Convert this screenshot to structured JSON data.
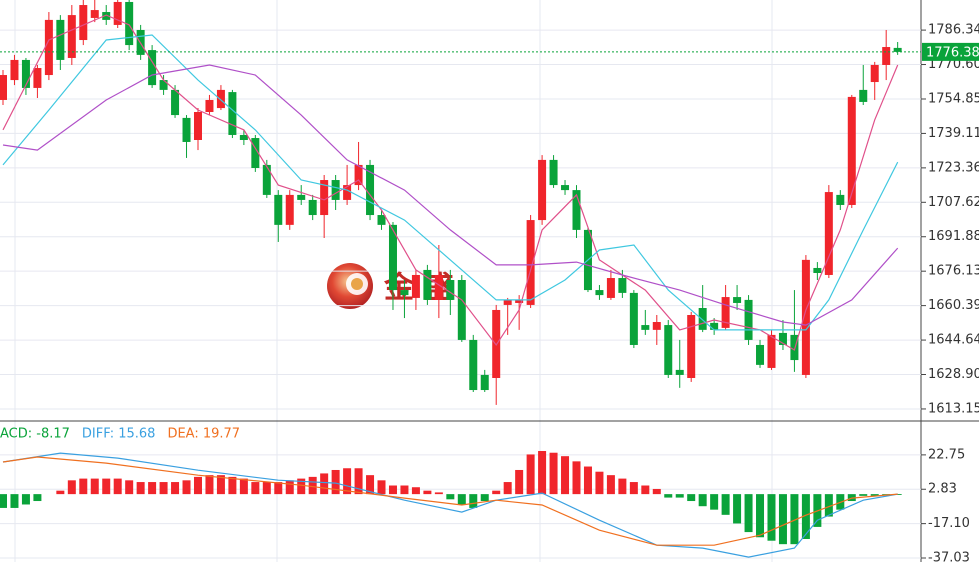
{
  "chart_data": [
    {
      "type": "candlestick",
      "ylim": [
        1608.1,
        1800.1
      ],
      "yticks": [
        1786.34,
        {
          "value": 1770.6,
          "label": "1770.60"
        },
        1754.85,
        1739.11,
        1723.36,
        1707.62,
        1691.88,
        1676.13,
        1660.39,
        1644.64,
        {
          "value": 1628.9,
          "label": "1628.90"
        },
        1613.15
      ],
      "grid": true,
      "up_color": "#f0252b",
      "down_color": "#0aa33a",
      "open": [
        1754.4,
        1763.5,
        1772.7,
        1759.9,
        1765.8,
        1791.0,
        1773.6,
        1781.8,
        1791.9,
        1794.6,
        1788.7,
        1799.2,
        1786.4,
        1777.2,
        1763.5,
        1759.0,
        1746.2,
        1736.1,
        1748.9,
        1750.7,
        1758.0,
        1738.4,
        1737.0,
        1724.7,
        1711.0,
        1697.3,
        1711.0,
        1708.7,
        1701.8,
        1717.8,
        1708.7,
        1715.5,
        1724.7,
        1701.8,
        1697.3,
        1667.5,
        1663.9,
        1676.7,
        1663.0,
        1672.1,
        1672.1,
        1644.7,
        1628.7,
        1627.3,
        1660.7,
        1661.6,
        1660.7,
        1699.5,
        1727.0,
        1715.5,
        1713.2,
        1695.0,
        1667.5,
        1663.9,
        1673.0,
        1666.2,
        1651.5,
        1649.3,
        1651.5,
        1631.0,
        1627.3,
        1659.3,
        1652.5,
        1650.2,
        1664.3,
        1663.0,
        1642.4,
        1631.9,
        1647.9,
        1647.0,
        1628.7,
        1677.6,
        1674.4,
        1711.0,
        1706.4,
        1759.0,
        1762.6,
        1770.4,
        1778.2
      ],
      "close": [
        1765.8,
        1772.7,
        1759.9,
        1769.0,
        1791.0,
        1772.7,
        1793.2,
        1797.8,
        1795.5,
        1791.0,
        1799.2,
        1779.5,
        1775.0,
        1761.2,
        1759.0,
        1747.5,
        1735.2,
        1748.9,
        1754.4,
        1759.0,
        1738.4,
        1736.1,
        1723.3,
        1711.0,
        1697.3,
        1711.0,
        1708.7,
        1701.8,
        1717.8,
        1708.7,
        1715.5,
        1724.7,
        1701.8,
        1697.3,
        1667.5,
        1665.2,
        1674.4,
        1663.0,
        1674.4,
        1663.0,
        1644.7,
        1621.8,
        1621.8,
        1658.4,
        1663.0,
        1663.0,
        1699.5,
        1727.0,
        1715.5,
        1713.2,
        1695.0,
        1667.5,
        1665.2,
        1673.0,
        1666.2,
        1642.4,
        1649.3,
        1652.9,
        1628.7,
        1628.7,
        1656.1,
        1649.3,
        1649.3,
        1664.3,
        1661.6,
        1644.7,
        1633.3,
        1647.0,
        1642.4,
        1635.5,
        1681.3,
        1675.3,
        1712.3,
        1706.4,
        1755.8,
        1753.5,
        1770.4,
        1778.6,
        1776.38
      ],
      "high": [
        1768.1,
        1775.0,
        1773.6,
        1770.4,
        1794.6,
        1793.2,
        1797.8,
        1800.1,
        1800.1,
        1797.8,
        1800.1,
        1800.1,
        1788.7,
        1779.5,
        1765.8,
        1761.2,
        1747.5,
        1750.7,
        1756.7,
        1761.2,
        1759.0,
        1740.7,
        1738.4,
        1727.0,
        1713.2,
        1713.2,
        1715.5,
        1711.0,
        1720.1,
        1720.1,
        1724.7,
        1735.2,
        1727.0,
        1704.1,
        1698.6,
        1672.1,
        1676.7,
        1679.0,
        1688.1,
        1676.7,
        1674.4,
        1647.0,
        1631.0,
        1660.7,
        1663.9,
        1665.2,
        1701.8,
        1729.2,
        1729.2,
        1717.8,
        1715.5,
        1695.9,
        1669.8,
        1676.7,
        1676.7,
        1667.5,
        1658.4,
        1656.1,
        1653.8,
        1644.7,
        1657.5,
        1669.8,
        1654.7,
        1669.8,
        1669.8,
        1665.2,
        1644.7,
        1649.3,
        1653.8,
        1667.5,
        1683.5,
        1680.3,
        1715.5,
        1713.2,
        1756.7,
        1770.4,
        1771.8,
        1786.4,
        1780.9
      ],
      "low": [
        1752.1,
        1761.2,
        1756.7,
        1755.3,
        1763.5,
        1768.1,
        1770.4,
        1779.5,
        1790.0,
        1788.7,
        1787.3,
        1777.2,
        1772.7,
        1759.9,
        1756.7,
        1746.2,
        1727.9,
        1731.5,
        1747.5,
        1749.8,
        1737.0,
        1733.8,
        1721.5,
        1709.6,
        1689.5,
        1695.0,
        1706.4,
        1699.5,
        1691.3,
        1704.1,
        1706.4,
        1713.2,
        1699.5,
        1695.0,
        1658.4,
        1654.7,
        1658.4,
        1660.7,
        1654.7,
        1656.1,
        1643.8,
        1620.9,
        1620.9,
        1615.0,
        1647.0,
        1649.3,
        1659.3,
        1697.3,
        1714.2,
        1711.0,
        1691.3,
        1666.6,
        1663.0,
        1663.0,
        1663.9,
        1641.0,
        1647.0,
        1642.4,
        1627.3,
        1622.8,
        1625.5,
        1648.3,
        1647.0,
        1649.3,
        1658.4,
        1642.4,
        1631.9,
        1631.0,
        1640.1,
        1630.1,
        1627.3,
        1672.1,
        1673.0,
        1704.1,
        1705.0,
        1752.1,
        1754.4,
        1763.5,
        1775.0
      ],
      "series": [
        {
          "color": "#e0508a",
          "x": [
            0,
            4,
            9,
            11,
            14,
            17,
            21,
            24,
            28,
            31,
            33,
            36,
            40,
            43,
            45,
            47,
            50,
            52,
            56,
            59,
            62,
            66,
            69,
            70,
            73,
            76,
            78
          ],
          "values": [
            1740.7,
            1781.8,
            1793.2,
            1788.7,
            1763.5,
            1749.8,
            1740.7,
            1715.5,
            1708.7,
            1717.8,
            1704.1,
            1676.7,
            1663.0,
            1642.4,
            1658.4,
            1695.0,
            1711.0,
            1681.3,
            1667.5,
            1649.3,
            1653.8,
            1649.3,
            1640.1,
            1658.4,
            1695.0,
            1745.3,
            1770.4
          ]
        },
        {
          "color": "#40c8e0",
          "x": [
            0,
            4,
            9,
            13,
            17,
            22,
            26,
            30,
            35,
            39,
            43,
            46,
            49,
            52,
            55,
            58,
            62,
            67,
            70,
            72,
            75,
            78
          ],
          "values": [
            1724.7,
            1749.8,
            1781.8,
            1784.1,
            1763.5,
            1740.7,
            1717.8,
            1713.2,
            1699.5,
            1681.3,
            1663.0,
            1663.0,
            1672.1,
            1685.8,
            1688.1,
            1667.5,
            1649.3,
            1649.3,
            1649.3,
            1663.0,
            1695.0,
            1726.0
          ]
        },
        {
          "color": "#b050c8",
          "x": [
            0,
            3,
            9,
            13,
            18,
            22,
            26,
            30,
            35,
            39,
            43,
            46,
            50,
            54,
            59,
            63,
            68,
            70,
            74,
            78
          ],
          "values": [
            1733.8,
            1731.5,
            1754.4,
            1765.8,
            1770.4,
            1765.8,
            1747.5,
            1727.0,
            1713.2,
            1695.0,
            1679.0,
            1679.0,
            1680.3,
            1674.4,
            1667.5,
            1660.7,
            1652.9,
            1651.5,
            1663.0,
            1686.7
          ]
        }
      ],
      "last_price": 1776.38,
      "last_price_color": "#0aa33a",
      "watermark": "金盛"
    },
    {
      "type": "macd",
      "ylim": [
        -39.34,
        42.39
      ],
      "yticks": [
        22.75,
        2.83,
        {
          "value": -17.1,
          "label": "-17.10"
        },
        -37.03
      ],
      "up_color": "#f0252b",
      "down_color": "#0aa33a",
      "histogram": {
        "name": "ACD: -8.17",
        "color": "#0aa33a",
        "values": [
          -8,
          -8,
          -6,
          -4,
          0,
          2,
          8,
          9,
          9,
          9,
          9,
          8,
          7,
          7,
          7,
          7,
          8,
          10,
          11,
          11,
          10,
          9,
          7,
          7,
          7,
          8,
          9,
          10,
          12,
          14,
          15,
          15,
          11,
          8,
          5,
          5,
          4,
          2,
          1,
          -3,
          -6,
          -8,
          -4,
          2,
          7,
          14,
          23,
          25,
          24,
          22,
          19,
          16,
          13,
          11,
          9,
          7,
          5,
          3,
          -2,
          -2,
          -4,
          -7,
          -9,
          -12,
          -17,
          -22,
          -25,
          -27,
          -29,
          -29,
          -26,
          -19,
          -13,
          -9,
          -4,
          -1,
          -1,
          -0.5,
          -0.5
        ]
      },
      "series": [
        {
          "name": "DIFF: 15.68",
          "color": "#3aa0e0",
          "x": [
            0,
            5,
            10,
            17,
            24,
            29,
            35,
            40,
            43,
            47,
            52,
            57,
            61,
            65,
            69,
            71,
            75,
            78
          ],
          "values": [
            18.6,
            23.8,
            20.9,
            13.9,
            8.1,
            6.4,
            -3.5,
            -10.4,
            -3.5,
            0.6,
            -15.1,
            -29.6,
            -31.3,
            -36.5,
            -31.3,
            -15.1,
            -3.5,
            0.0
          ]
        },
        {
          "name": "DEA: 19.77",
          "color": "#f07020",
          "x": [
            0,
            3,
            9,
            17,
            26,
            35,
            40,
            43,
            47,
            52,
            57,
            62,
            66,
            70,
            74,
            78
          ],
          "values": [
            18.6,
            21.5,
            18.0,
            11.0,
            5.2,
            -2.3,
            -6.3,
            -3.5,
            -6.3,
            -20.9,
            -29.6,
            -29.6,
            -23.8,
            -12.2,
            -2.3,
            0.0
          ]
        }
      ]
    }
  ]
}
